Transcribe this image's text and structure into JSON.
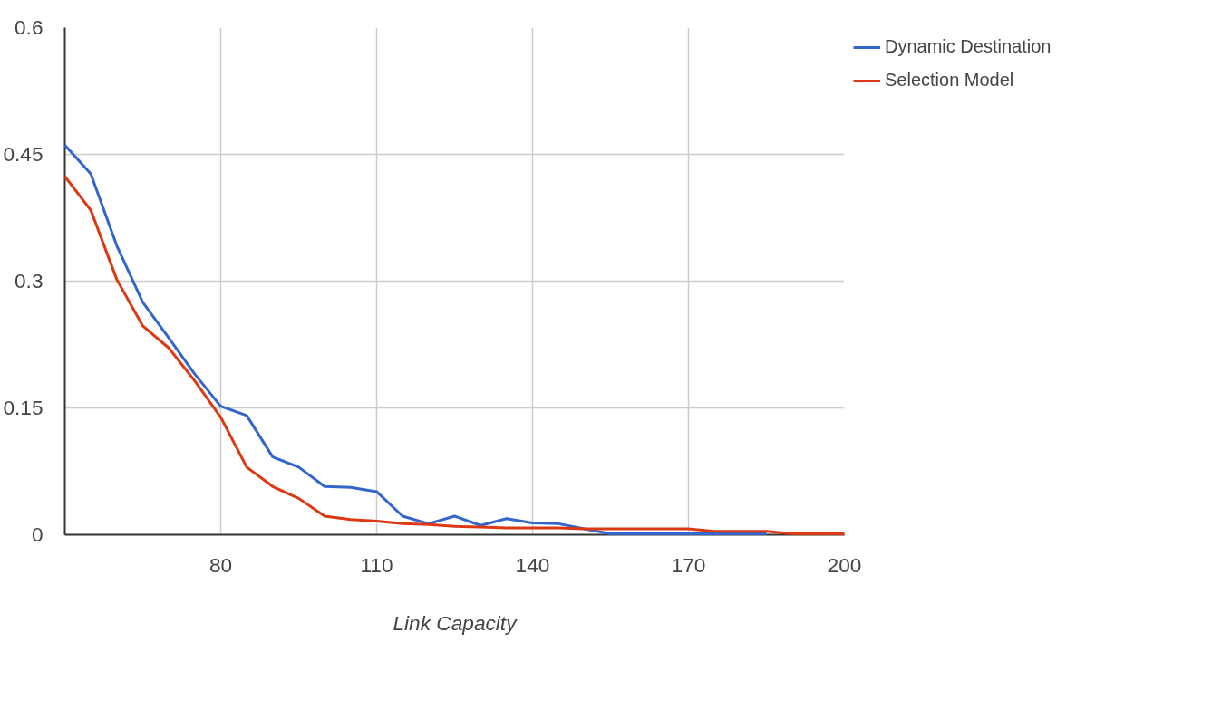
{
  "chart_data": {
    "type": "line",
    "xlabel": "Link Capacity",
    "x": [
      50,
      55,
      60,
      65,
      70,
      75,
      80,
      85,
      90,
      95,
      100,
      105,
      110,
      115,
      120,
      125,
      130,
      135,
      140,
      145,
      150,
      155,
      160,
      165,
      170,
      175,
      180,
      185,
      190,
      195,
      200
    ],
    "series": [
      {
        "name": "Dynamic Destination",
        "color": "#3366cc",
        "values": [
          0.461,
          0.427,
          0.342,
          0.275,
          0.233,
          0.19,
          0.152,
          0.141,
          0.092,
          0.08,
          0.057,
          0.056,
          0.051,
          0.022,
          0.013,
          0.022,
          0.011,
          0.019,
          0.014,
          0.013,
          0.007,
          0.001,
          0.001,
          0.001,
          0.001,
          0.001,
          0.001,
          0.001,
          null,
          null,
          null
        ]
      },
      {
        "name": "Selection Model",
        "color": "#dc3912",
        "values": [
          0.424,
          0.384,
          0.302,
          0.247,
          0.221,
          0.182,
          0.139,
          0.08,
          0.057,
          0.043,
          0.022,
          0.018,
          0.016,
          0.013,
          0.012,
          0.01,
          0.009,
          0.008,
          0.008,
          0.008,
          0.007,
          0.007,
          0.007,
          0.007,
          0.007,
          0.004,
          0.004,
          0.004,
          0.001,
          0.001,
          0.001
        ]
      }
    ],
    "xlim": [
      50,
      200
    ],
    "xticks": [
      80,
      110,
      140,
      170,
      200
    ],
    "ylim": [
      0,
      0.6
    ],
    "yticks": [
      0,
      0.15,
      0.3,
      0.45,
      0.6
    ],
    "grid": true,
    "legend": "top right",
    "marker": "none",
    "line_style": "solid"
  }
}
